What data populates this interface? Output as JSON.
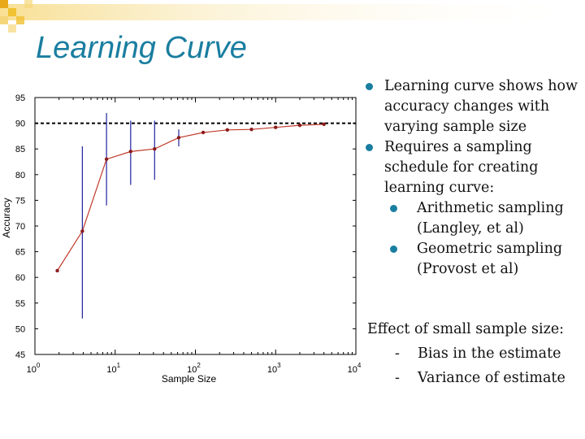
{
  "colors": {
    "accent": "#1a7ea0",
    "corner": "#f1c232",
    "series": "#c0392b",
    "error_bars": "#2020a0"
  },
  "slide": {
    "title": "Learning Curve",
    "bullets": [
      {
        "text": "Learning curve shows how accuracy changes with varying sample size"
      },
      {
        "text": "Requires a sampling schedule for creating learning curve:"
      }
    ],
    "sub_bullets": [
      {
        "text": "Arithmetic sampling (Langley, et al)"
      },
      {
        "text": "Geometric sampling (Provost et al)"
      }
    ],
    "effect": {
      "heading": "Effect of small sample size:",
      "items": [
        {
          "marker": "-",
          "text": "Bias in the estimate"
        },
        {
          "marker": "-",
          "text": "Variance of estimate"
        }
      ]
    }
  },
  "chart_data": {
    "type": "line",
    "xlabel": "Sample Size",
    "ylabel": "Accuracy",
    "xscale": "log",
    "xlim": [
      1,
      10000
    ],
    "ylim": [
      45,
      95
    ],
    "grid": false,
    "x_tick_base": "10",
    "x_tick_exponents": [
      "0",
      "1",
      "2",
      "3",
      "4"
    ],
    "y_ticks": [
      "45",
      "50",
      "55",
      "60",
      "65",
      "70",
      "75",
      "80",
      "85",
      "90",
      "95"
    ],
    "reference_line": 90,
    "series": [
      {
        "x": [
          1.9,
          3.9,
          7.8,
          15.6,
          31,
          62,
          125,
          250,
          500,
          1000,
          2000,
          4000
        ],
        "y": [
          61.3,
          69,
          83,
          84.5,
          85,
          87.2,
          88.2,
          88.7,
          88.8,
          89.2,
          89.6,
          89.8
        ]
      }
    ],
    "error_bars": [
      {
        "x": 3.9,
        "low": 52,
        "high": 85.5
      },
      {
        "x": 7.8,
        "low": 74,
        "high": 92
      },
      {
        "x": 15.6,
        "low": 78,
        "high": 90.5
      },
      {
        "x": 31,
        "low": 79,
        "high": 90.5
      },
      {
        "x": 62,
        "low": 85.5,
        "high": 88.8
      }
    ]
  }
}
